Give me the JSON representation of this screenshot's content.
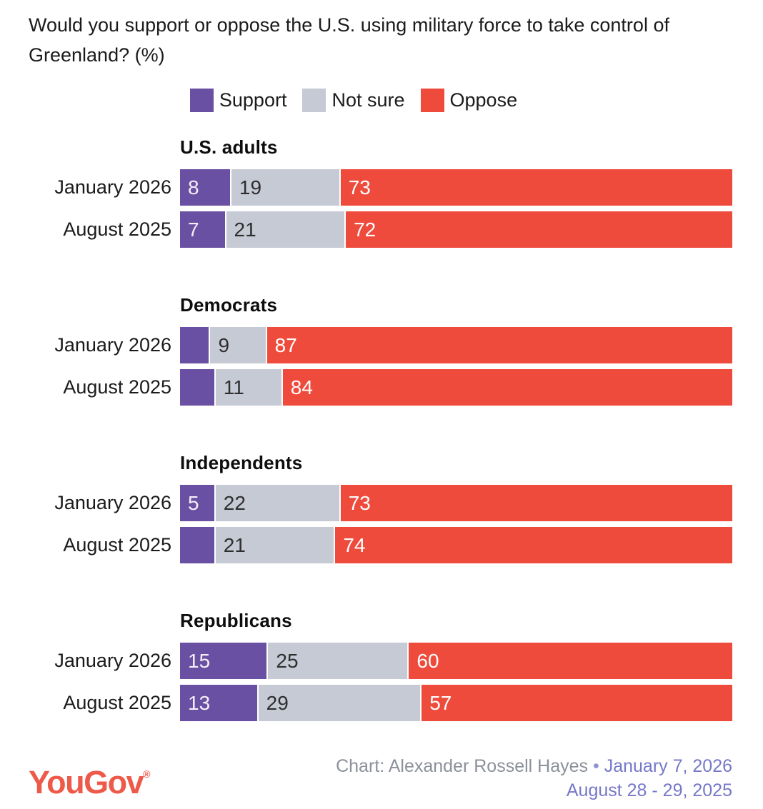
{
  "title": "Would you support or oppose the U.S. using military force to take control of Greenland? (%)",
  "legend": [
    {
      "label": "Support",
      "color": "#6a50a2",
      "text_color": "#f6eef9"
    },
    {
      "label": "Not sure",
      "color": "#c5cad5",
      "text_color": "#2e2e2e"
    },
    {
      "label": "Oppose",
      "color": "#ee4b3c",
      "text_color": "#ffffff"
    }
  ],
  "chart_data": {
    "type": "bar",
    "orientation": "horizontal",
    "stacked": true,
    "unit": "%",
    "xlim": [
      0,
      100
    ],
    "grid": false,
    "legend_position": "top-center",
    "series_names": [
      "Support",
      "Not sure",
      "Oppose"
    ],
    "groups": [
      {
        "name": "U.S. adults",
        "rows": [
          {
            "period": "January 2026",
            "values": [
              8,
              19,
              73
            ],
            "shown_labels": [
              "8",
              "19",
              "73"
            ]
          },
          {
            "period": "August 2025",
            "values": [
              7,
              21,
              72
            ],
            "shown_labels": [
              "7",
              "21",
              "72"
            ]
          }
        ]
      },
      {
        "name": "Democrats",
        "rows": [
          {
            "period": "January 2026",
            "values": [
              4,
              9,
              87
            ],
            "shown_labels": [
              "",
              "9",
              "87"
            ]
          },
          {
            "period": "August 2025",
            "values": [
              5,
              11,
              84
            ],
            "shown_labels": [
              "",
              "11",
              "84"
            ]
          }
        ]
      },
      {
        "name": "Independents",
        "rows": [
          {
            "period": "January 2026",
            "values": [
              5,
              22,
              73
            ],
            "shown_labels": [
              "5",
              "22",
              "73"
            ]
          },
          {
            "period": "August 2025",
            "values": [
              5,
              21,
              74
            ],
            "shown_labels": [
              "",
              "21",
              "74"
            ]
          }
        ]
      },
      {
        "name": "Republicans",
        "rows": [
          {
            "period": "January 2026",
            "values": [
              15,
              25,
              60
            ],
            "shown_labels": [
              "15",
              "25",
              "60"
            ]
          },
          {
            "period": "August 2025",
            "values": [
              13,
              29,
              57
            ],
            "shown_labels": [
              "13",
              "29",
              "57"
            ]
          }
        ]
      }
    ]
  },
  "footer": {
    "logo": "YouGov",
    "registered": "®",
    "credit_prefix": "Chart: Alexander Rossell Hayes",
    "separator": "•",
    "date_line1": "January 7, 2026",
    "date_line2": "August 28 - 29, 2025"
  },
  "colors": {
    "background": "#ffffff",
    "title_text": "#1b1b1b",
    "support": "#6a50a2",
    "not_sure": "#c5cad5",
    "oppose": "#ee4b3c",
    "logo_red": "#ee5a49",
    "credit_gray": "#8b909a",
    "date_purple": "#7578c8"
  }
}
